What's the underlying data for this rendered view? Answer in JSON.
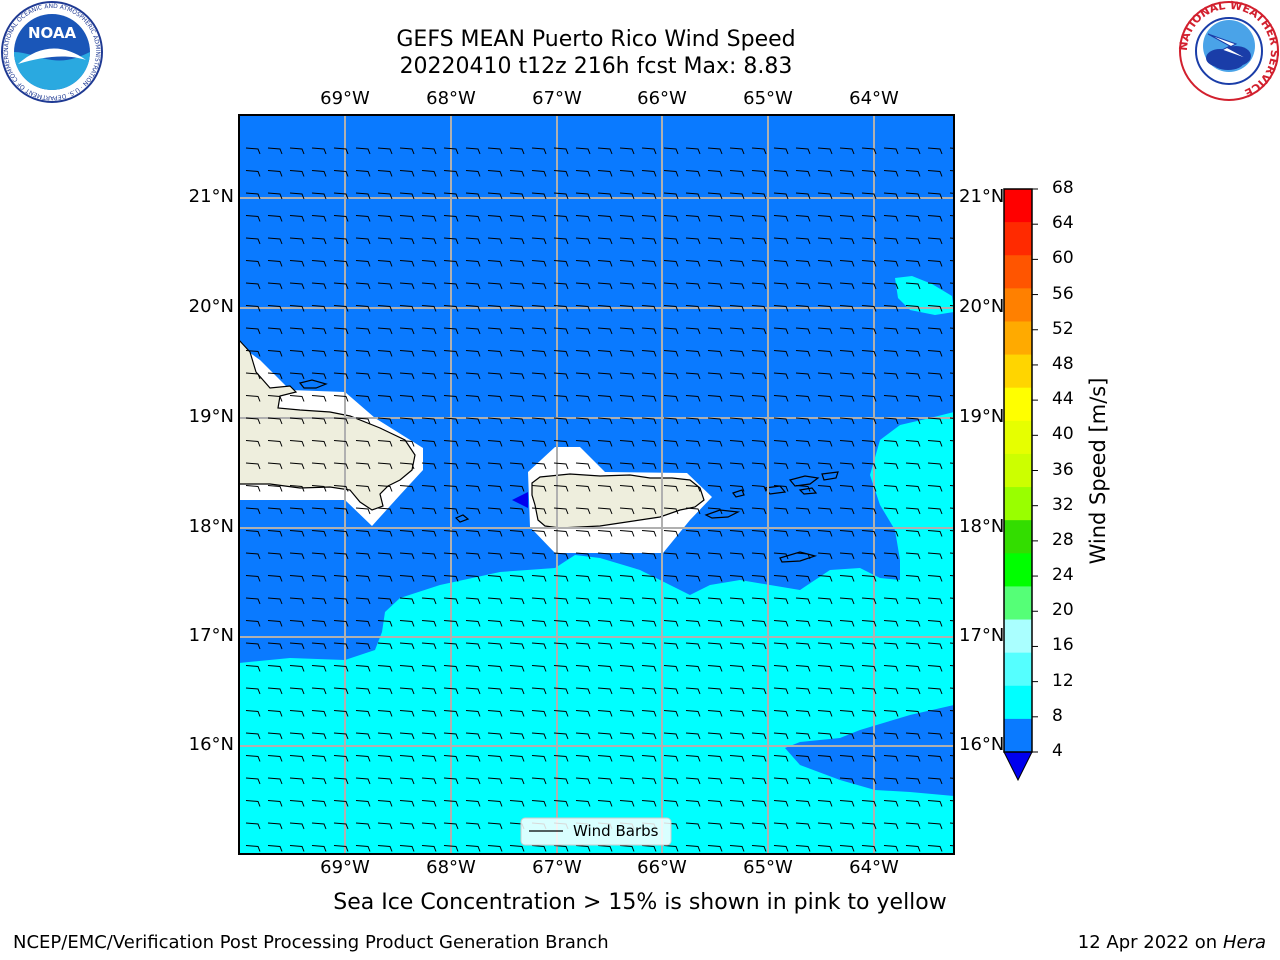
{
  "title": {
    "line1": "GEFS MEAN Puerto Rico Wind Speed",
    "line2": "20220410 t12z 216h fcst   Max: 8.83"
  },
  "map": {
    "lon_labels": [
      "69°W",
      "68°W",
      "67°W",
      "66°W",
      "65°W",
      "64°W"
    ],
    "lat_labels": [
      "21°N",
      "20°N",
      "19°N",
      "18°N",
      "17°N",
      "16°N"
    ],
    "legend_label": "Wind Barbs",
    "colors": {
      "ocean_low": "#0a7aff",
      "ocean_high": "#00ffff",
      "land": "#eeeedd",
      "min_band": "#0000ee"
    }
  },
  "colorbar": {
    "label": "Wind Speed [m/s]",
    "ticks": [
      "68",
      "64",
      "60",
      "56",
      "52",
      "48",
      "44",
      "40",
      "36",
      "32",
      "28",
      "24",
      "20",
      "16",
      "12",
      "8",
      "4"
    ],
    "band_colors": [
      "#ff0000",
      "#ff2a00",
      "#ff5500",
      "#ff8000",
      "#ffaa00",
      "#ffd500",
      "#ffff00",
      "#e6ff00",
      "#ccff00",
      "#99ff00",
      "#33dd00",
      "#00ff00",
      "#55ff77",
      "#aaffff",
      "#55ffff",
      "#00ffff",
      "#0a7aff"
    ],
    "extend_color": "#0000ee"
  },
  "note": "Sea Ice Concentration > 15% is shown in pink to yellow",
  "footer": {
    "left": "NCEP/EMC/Verification Post Processing Product Generation Branch",
    "date": "12 Apr 2022 on",
    "host": "Hera"
  },
  "logos": {
    "noaa": {
      "text": "NOAA",
      "ring_text": "NATIONAL OCEANIC AND ATMOSPHERIC ADMINISTRATION · U.S. DEPARTMENT OF COMMERCE"
    },
    "nws": {
      "ring_text": "NATIONAL WEATHER SERVICE"
    }
  }
}
